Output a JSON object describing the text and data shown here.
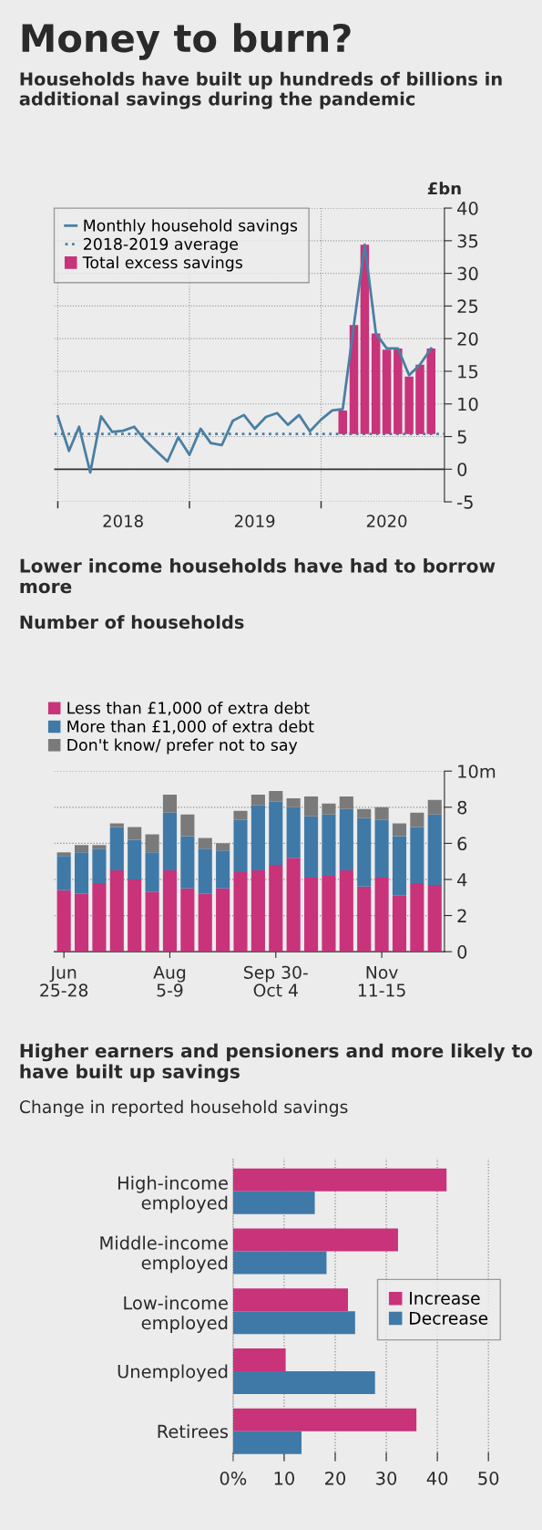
{
  "chart_data": [
    {
      "type": "line",
      "title": "Money to burn?",
      "subtitle": "Households have built up hundreds of billions in additional savings during the pandemic",
      "ylabel": "£bn",
      "series": [
        {
          "name": "Monthly household savings",
          "type": "line",
          "color": "#4a7fa3",
          "x": [
            "2018-01",
            "2018-02",
            "2018-03",
            "2018-04",
            "2018-05",
            "2018-06",
            "2018-07",
            "2018-08",
            "2018-09",
            "2018-10",
            "2018-11",
            "2018-12",
            "2019-01",
            "2019-02",
            "2019-03",
            "2019-04",
            "2019-05",
            "2019-06",
            "2019-07",
            "2019-08",
            "2019-09",
            "2019-10",
            "2019-11",
            "2019-12",
            "2020-01",
            "2020-02",
            "2020-03",
            "2020-04",
            "2020-05",
            "2020-06",
            "2020-07",
            "2020-08",
            "2020-09",
            "2020-10",
            "2020-11"
          ],
          "values": [
            8.1,
            2.8,
            6.5,
            -0.5,
            8.1,
            5.7,
            5.9,
            6.5,
            4.4,
            2.8,
            1.2,
            4.9,
            2.2,
            6.2,
            4.0,
            3.7,
            7.4,
            8.3,
            6.2,
            8.0,
            8.6,
            6.8,
            8.3,
            5.8,
            7.6,
            9.0,
            9.2,
            22.1,
            34.4,
            20.8,
            18.5,
            18.5,
            14.4,
            16.0,
            18.5
          ]
        },
        {
          "name": "Total excess savings",
          "type": "bar",
          "color": "#c8337a",
          "x": [
            "2020-03",
            "2020-04",
            "2020-05",
            "2020-06",
            "2020-07",
            "2020-08",
            "2020-09",
            "2020-10",
            "2020-11"
          ],
          "base": [
            5.4,
            5.4,
            5.4,
            5.4,
            5.4,
            5.4,
            5.4,
            5.4,
            5.4
          ],
          "values": [
            3.6,
            16.7,
            29.0,
            15.4,
            12.9,
            13.1,
            8.8,
            10.6,
            13.1
          ]
        }
      ],
      "ref_lines": [
        {
          "axis": "y",
          "value": 5.4,
          "label": "2018-2019 average",
          "color": "#4a7fa3",
          "line_style": "dotted"
        },
        {
          "axis": "y",
          "value": 0,
          "color": "#333333",
          "line_style": "solid"
        }
      ],
      "xlim": [
        "2017-12-22",
        "2020-12-08"
      ],
      "ylim": [
        -5,
        40
      ],
      "yticks": [
        -5,
        0,
        5,
        10,
        15,
        20,
        25,
        30,
        35,
        40
      ],
      "xticks": [
        {
          "value": "2018-01-01",
          "label": null
        },
        {
          "value": "2018-07-01",
          "label": "2018"
        },
        {
          "value": "2019-01-01",
          "label": null
        },
        {
          "value": "2019-07-01",
          "label": "2019"
        },
        {
          "value": "2020-01-01",
          "label": null
        },
        {
          "value": "2020-07-01",
          "label": "2020"
        }
      ],
      "grid": true,
      "legend": "top left"
    },
    {
      "type": "bar",
      "stacked": true,
      "title": "Lower income households have had to borrow more",
      "subtitle": "Number of households",
      "categories": [
        "Jun\n25-28",
        null,
        null,
        null,
        null,
        null,
        "Aug\n5-9",
        null,
        null,
        null,
        null,
        null,
        "Sep 30-\nOct 4",
        null,
        null,
        null,
        null,
        null,
        "Nov\n11-15",
        null,
        null,
        null
      ],
      "series": [
        {
          "name": "Less than £1,000 of extra debt",
          "color": "#c8337a",
          "values": [
            3.4,
            3.2,
            3.8,
            4.5,
            4.0,
            3.3,
            4.5,
            3.5,
            3.2,
            3.5,
            4.4,
            4.5,
            4.8,
            5.2,
            4.1,
            4.2,
            4.5,
            3.6,
            4.1,
            3.1,
            3.8,
            3.7
          ]
        },
        {
          "name": "More than £1,000 of extra debt",
          "color": "#3f79a8",
          "values": [
            1.9,
            2.3,
            1.9,
            2.4,
            2.2,
            2.2,
            3.2,
            2.9,
            2.5,
            2.1,
            2.9,
            3.6,
            3.5,
            2.8,
            3.4,
            3.4,
            3.4,
            3.8,
            3.2,
            3.3,
            3.1,
            3.9
          ]
        },
        {
          "name": "Don't know/ prefer not to say",
          "color": "#7a7a7a",
          "values": [
            0.2,
            0.4,
            0.2,
            0.2,
            0.7,
            1.0,
            1.0,
            1.2,
            0.6,
            0.4,
            0.5,
            0.6,
            0.6,
            0.5,
            1.1,
            0.6,
            0.7,
            0.5,
            0.7,
            0.7,
            0.8,
            0.8
          ]
        }
      ],
      "ylim": [
        0,
        10
      ],
      "yticks": [
        0,
        2,
        4,
        6,
        8,
        {
          "value": 10,
          "label": "10m"
        }
      ],
      "grid": "y",
      "legend": "top left"
    },
    {
      "type": "bar",
      "orientation": "horizontal",
      "title": "Higher earners and pensioners and more likely to have built up savings",
      "subtitle": "Change in reported household savings",
      "categories": [
        "High-income\nemployed",
        "Middle-income\nemployed",
        "Low-income\nemployed",
        "Unemployed",
        "Retirees"
      ],
      "series": [
        {
          "name": "Increase",
          "color": "#c8337a",
          "values": [
            41.8,
            32.3,
            22.5,
            10.3,
            35.9
          ]
        },
        {
          "name": "Decrease",
          "color": "#3f79a8",
          "values": [
            16.0,
            18.3,
            23.9,
            27.8,
            13.4
          ]
        }
      ],
      "xlim": [
        0,
        52
      ],
      "xticks": [
        {
          "value": 0,
          "label": "0%"
        },
        10,
        20,
        30,
        40,
        50
      ],
      "grid": "x",
      "legend": "right"
    }
  ]
}
